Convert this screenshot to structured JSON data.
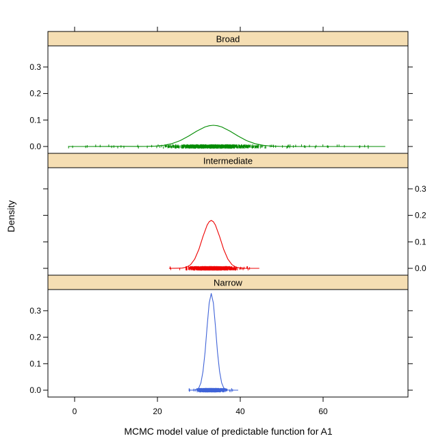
{
  "figure": {
    "background": "#ffffff",
    "xlabel": "MCMC model value of predictable function for A1",
    "ylabel": "Density",
    "strip_color": "#f5deb3",
    "border_color": "#000000",
    "x_ticks": {
      "values": [
        0,
        20,
        40,
        60
      ],
      "labels": [
        "0",
        "20",
        "40",
        "60"
      ]
    },
    "y_ticks": {
      "values": [
        0,
        0.1,
        0.2,
        0.3
      ],
      "labels": [
        "0.0",
        "0.1",
        "0.2",
        "0.3"
      ]
    }
  },
  "chart_data": {
    "type": "line",
    "subtype": "lattice-densityplot-with-rug",
    "title": "",
    "xlabel": "MCMC model value of predictable function for A1",
    "ylabel": "Density",
    "xlim": [
      -6.5,
      80.5
    ],
    "ylim": [
      0,
      0.38
    ],
    "x_tick_values": [
      0,
      20,
      40,
      60
    ],
    "y_tick_values": [
      0,
      0.1,
      0.2,
      0.3
    ],
    "grid": false,
    "legend": "none",
    "panels": [
      {
        "label": "Broad",
        "color": "#008b00",
        "peak_x": 33.5,
        "peak_density": 0.08,
        "sd": 5.0,
        "data_range": [
          -1.5,
          75
        ],
        "axis_label_side": "left",
        "curve": [
          [
            -1.5,
            0.0001
          ],
          [
            3,
            0.0001
          ],
          [
            8,
            0.0002
          ],
          [
            12,
            0.0004
          ],
          [
            15.5,
            0.0002
          ],
          [
            17.5,
            0.0005
          ],
          [
            19.5,
            0.0016
          ],
          [
            21.5,
            0.0045
          ],
          [
            23.5,
            0.0108
          ],
          [
            25.5,
            0.0222
          ],
          [
            27.5,
            0.0389
          ],
          [
            29.5,
            0.0581
          ],
          [
            31.5,
            0.0738
          ],
          [
            32.5,
            0.0784
          ],
          [
            33.5,
            0.08
          ],
          [
            34.5,
            0.0784
          ],
          [
            35.5,
            0.0738
          ],
          [
            37.5,
            0.0581
          ],
          [
            39.5,
            0.0389
          ],
          [
            41.5,
            0.0222
          ],
          [
            43.5,
            0.0108
          ],
          [
            45.5,
            0.0045
          ],
          [
            47.5,
            0.0016
          ],
          [
            49.5,
            0.0005
          ],
          [
            51.5,
            0.0002
          ],
          [
            55,
            0.0001
          ],
          [
            60,
            0.0001
          ],
          [
            65,
            0.0001
          ],
          [
            70,
            0.0001
          ],
          [
            75,
            0.0001
          ]
        ],
        "rug": {
          "count": 800,
          "mean": 33.5,
          "sd": 5.0,
          "outliers": {
            "count": 70,
            "min": -1.5,
            "max": 75
          },
          "seed": 7
        }
      },
      {
        "label": "Intermediate",
        "color": "#ee0000",
        "peak_x": 33,
        "peak_density": 0.181,
        "sd": 2.2,
        "data_range": [
          22.8,
          44.6
        ],
        "axis_label_side": "right",
        "curve": [
          [
            22.8,
            0.0001
          ],
          [
            24,
            0.0002
          ],
          [
            25,
            0.0005
          ],
          [
            26,
            0.0011
          ],
          [
            27,
            0.0044
          ],
          [
            28,
            0.0137
          ],
          [
            29,
            0.0347
          ],
          [
            30,
            0.0714
          ],
          [
            31,
            0.1198
          ],
          [
            32,
            0.1632
          ],
          [
            32.5,
            0.176
          ],
          [
            33,
            0.181
          ],
          [
            33.5,
            0.176
          ],
          [
            34,
            0.1632
          ],
          [
            35,
            0.1198
          ],
          [
            36,
            0.0714
          ],
          [
            37,
            0.0347
          ],
          [
            38,
            0.0137
          ],
          [
            39,
            0.0044
          ],
          [
            40,
            0.0011
          ],
          [
            41,
            0.0002
          ],
          [
            42.5,
            0.0001
          ],
          [
            44.6,
            0.0001
          ]
        ],
        "rug": {
          "count": 1400,
          "mean": 33,
          "sd": 2.4,
          "outliers": {
            "count": 30,
            "min": 23,
            "max": 44.5
          },
          "seed": 11
        }
      },
      {
        "label": "Narrow",
        "color": "#3f63d8",
        "peak_x": 33,
        "peak_density": 0.365,
        "sd": 1.1,
        "data_range": [
          27.5,
          39.5
        ],
        "axis_label_side": "left",
        "curve": [
          [
            27.5,
            0.0001
          ],
          [
            28.5,
            0.0002
          ],
          [
            29,
            0.0005
          ],
          [
            29.5,
            0.0023
          ],
          [
            30,
            0.0089
          ],
          [
            30.5,
            0.0276
          ],
          [
            31,
            0.0699
          ],
          [
            31.5,
            0.1441
          ],
          [
            32,
            0.2415
          ],
          [
            32.5,
            0.3292
          ],
          [
            33,
            0.365
          ],
          [
            33.5,
            0.3292
          ],
          [
            34,
            0.2415
          ],
          [
            34.5,
            0.1441
          ],
          [
            35,
            0.0699
          ],
          [
            35.5,
            0.0276
          ],
          [
            36,
            0.0089
          ],
          [
            36.5,
            0.0023
          ],
          [
            37,
            0.0005
          ],
          [
            37.8,
            0.0002
          ],
          [
            38.8,
            0.0001
          ],
          [
            39.5,
            0.0001
          ]
        ],
        "rug": {
          "count": 1400,
          "mean": 33,
          "sd": 1.25,
          "outliers": {
            "count": 25,
            "min": 27.5,
            "max": 39.3
          },
          "seed": 13
        }
      }
    ]
  }
}
